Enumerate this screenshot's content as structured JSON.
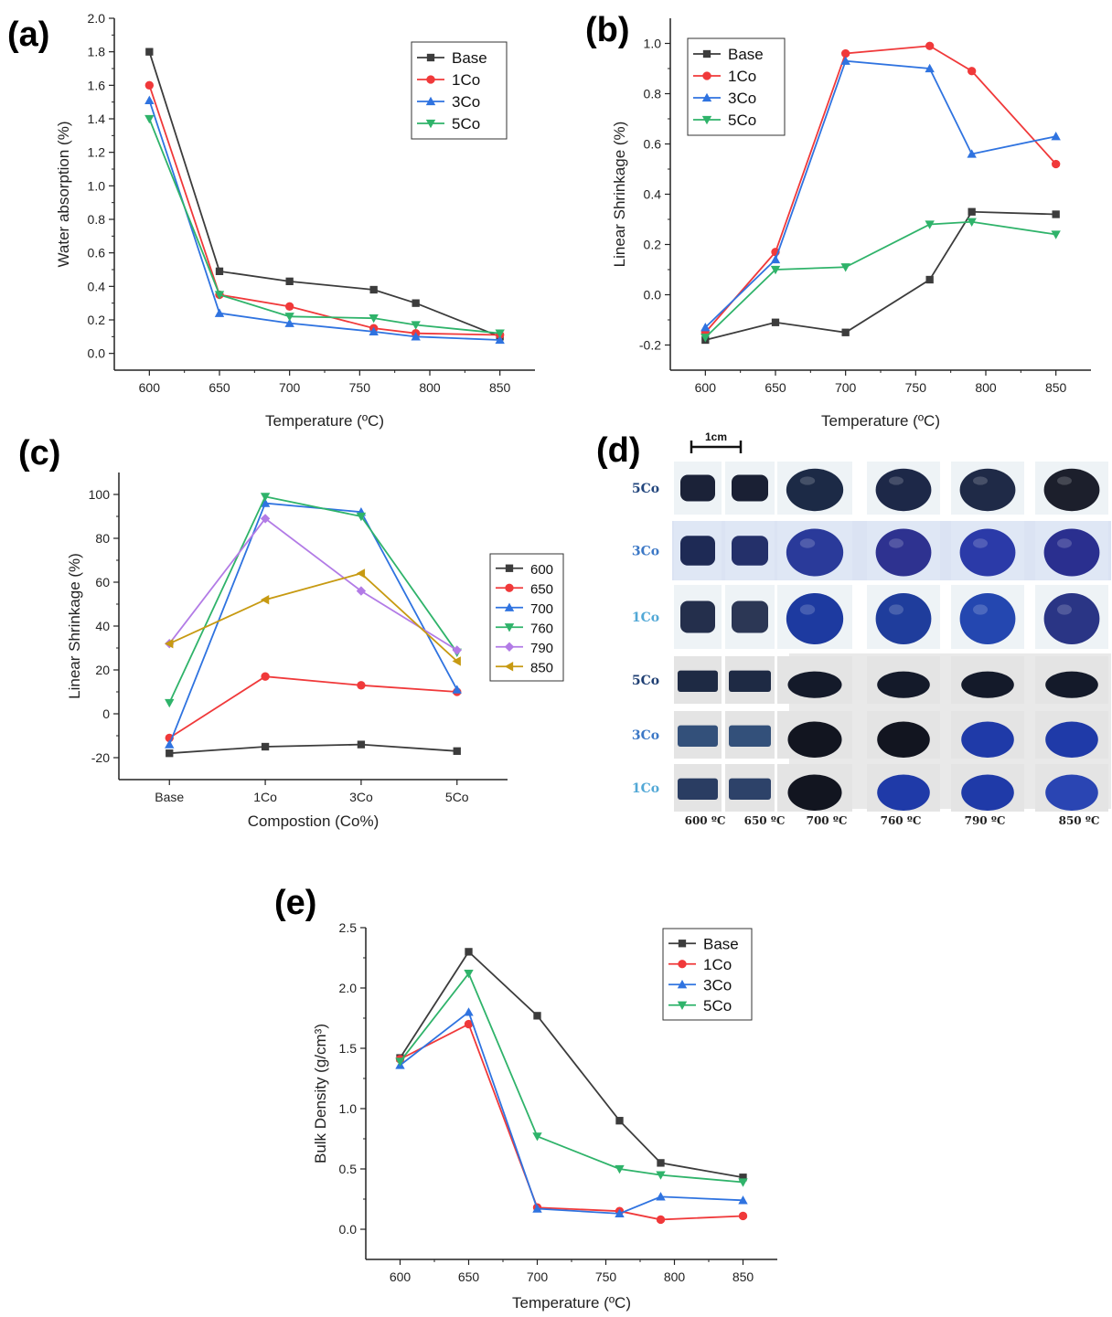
{
  "panels": {
    "a": "(a)",
    "b": "(b)",
    "c": "(c)",
    "d": "(d)",
    "e": "(e)"
  },
  "colors": {
    "Base": "#3c3c3c",
    "1Co": "#f0393a",
    "3Co": "#2f73e0",
    "5Co": "#2fb36a",
    "600": "#3c3c3c",
    "650": "#f0393a",
    "700": "#2f73e0",
    "760": "#2fb36a",
    "790": "#b27be6",
    "850": "#c79a12"
  },
  "photo": {
    "scale_label": "1cm",
    "rows": [
      "5Co",
      "3Co",
      "1Co",
      "5Co",
      "3Co",
      "1Co"
    ],
    "temps": [
      "600 ºC",
      "650 ºC",
      "700 ºC",
      "760 ºC",
      "790 ºC",
      "850 ºC"
    ]
  },
  "chart_data": [
    {
      "id": "a",
      "type": "line",
      "xlabel": "Temperature (ºC)",
      "ylabel": "Water absorption (%)",
      "xlim": [
        575,
        875
      ],
      "ylim": [
        -0.1,
        2.0
      ],
      "xticks": [
        600,
        650,
        700,
        750,
        800,
        850
      ],
      "yticks": [
        0.0,
        0.2,
        0.4,
        0.6,
        0.8,
        1.0,
        1.2,
        1.4,
        1.6,
        1.8,
        2.0
      ],
      "ytick_labels": [
        "0.0",
        "0.2",
        "0.4",
        "0.6",
        "0.8",
        "1.0",
        "1.2",
        "1.4",
        "1.6",
        "1.8",
        "2.0"
      ],
      "legend_position": "top-right",
      "x": [
        600,
        650,
        700,
        760,
        790,
        850
      ],
      "series": [
        {
          "name": "Base",
          "marker": "square",
          "values": [
            1.8,
            0.49,
            0.43,
            0.38,
            0.3,
            0.1
          ]
        },
        {
          "name": "1Co",
          "marker": "circle",
          "values": [
            1.6,
            0.35,
            0.28,
            0.15,
            0.12,
            0.11
          ]
        },
        {
          "name": "3Co",
          "marker": "triangle-up",
          "values": [
            1.51,
            0.24,
            0.18,
            0.13,
            0.1,
            0.08
          ]
        },
        {
          "name": "5Co",
          "marker": "triangle-down",
          "values": [
            1.4,
            0.35,
            0.22,
            0.21,
            0.17,
            0.12
          ]
        }
      ]
    },
    {
      "id": "b",
      "type": "line",
      "xlabel": "Temperature (ºC)",
      "ylabel": "Linear Shrinkage (%)",
      "xlim": [
        575,
        875
      ],
      "ylim": [
        -0.3,
        1.1
      ],
      "xticks": [
        600,
        650,
        700,
        750,
        800,
        850
      ],
      "yticks": [
        -0.2,
        0.0,
        0.2,
        0.4,
        0.6,
        0.8,
        1.0
      ],
      "ytick_labels": [
        "-0.2",
        "0.0",
        "0.2",
        "0.4",
        "0.6",
        "0.8",
        "1.0"
      ],
      "legend_position": "top-left",
      "x": [
        600,
        650,
        700,
        760,
        790,
        850
      ],
      "series": [
        {
          "name": "Base",
          "marker": "square",
          "values": [
            -0.18,
            -0.11,
            -0.15,
            0.06,
            0.33,
            0.32
          ]
        },
        {
          "name": "1Co",
          "marker": "circle",
          "values": [
            -0.15,
            0.17,
            0.96,
            0.99,
            0.89,
            0.52
          ]
        },
        {
          "name": "3Co",
          "marker": "triangle-up",
          "values": [
            -0.13,
            0.14,
            0.93,
            0.9,
            0.56,
            0.63
          ]
        },
        {
          "name": "5Co",
          "marker": "triangle-down",
          "values": [
            -0.17,
            0.1,
            0.11,
            0.28,
            0.29,
            0.24
          ]
        }
      ]
    },
    {
      "id": "c",
      "type": "line",
      "xlabel": "Compostion (Co%)",
      "ylabel": "Linear Shrinkage (%)",
      "categories": [
        "Base",
        "1Co",
        "3Co",
        "5Co"
      ],
      "ylim": [
        -30,
        110
      ],
      "yticks": [
        -20,
        0,
        20,
        40,
        60,
        80,
        100
      ],
      "ytick_labels": [
        "-20",
        "0",
        "20",
        "40",
        "60",
        "80",
        "100"
      ],
      "legend_position": "right",
      "series": [
        {
          "name": "600",
          "marker": "square",
          "values": [
            -18,
            -15,
            -14,
            -17
          ]
        },
        {
          "name": "650",
          "marker": "circle",
          "values": [
            -11,
            17,
            13,
            10
          ]
        },
        {
          "name": "700",
          "marker": "triangle-up",
          "values": [
            -14,
            96,
            92,
            11
          ]
        },
        {
          "name": "760",
          "marker": "triangle-down",
          "values": [
            5,
            99,
            90,
            28
          ]
        },
        {
          "name": "790",
          "marker": "diamond",
          "values": [
            32,
            89,
            56,
            29
          ]
        },
        {
          "name": "850",
          "marker": "triangle-left",
          "values": [
            32,
            52,
            64,
            24
          ]
        }
      ]
    },
    {
      "id": "e",
      "type": "line",
      "xlabel": "Temperature (ºC)",
      "ylabel": "Bulk Density (g/cm³)",
      "xlim": [
        575,
        875
      ],
      "ylim": [
        -0.25,
        2.5
      ],
      "xticks": [
        600,
        650,
        700,
        750,
        800,
        850
      ],
      "yticks": [
        0.0,
        0.5,
        1.0,
        1.5,
        2.0,
        2.5
      ],
      "ytick_labels": [
        "0.0",
        "0.5",
        "1.0",
        "1.5",
        "2.0",
        "2.5"
      ],
      "legend_position": "top-right",
      "x": [
        600,
        650,
        700,
        760,
        790,
        850
      ],
      "series": [
        {
          "name": "Base",
          "marker": "square",
          "values": [
            1.42,
            2.3,
            1.77,
            0.9,
            0.55,
            0.43
          ]
        },
        {
          "name": "1Co",
          "marker": "circle",
          "values": [
            1.41,
            1.7,
            0.18,
            0.15,
            0.08,
            0.11
          ]
        },
        {
          "name": "3Co",
          "marker": "triangle-up",
          "values": [
            1.36,
            1.8,
            0.17,
            0.13,
            0.27,
            0.24
          ]
        },
        {
          "name": "5Co",
          "marker": "triangle-down",
          "values": [
            1.39,
            2.12,
            0.77,
            0.5,
            0.45,
            0.39
          ]
        }
      ]
    }
  ]
}
